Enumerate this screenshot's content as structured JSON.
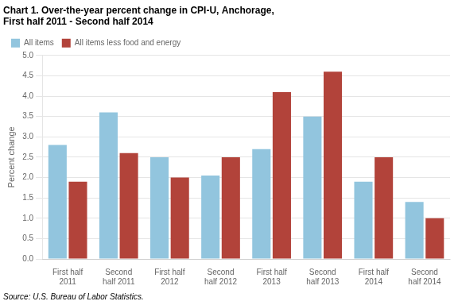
{
  "chart_data": {
    "type": "bar",
    "title": "Chart 1. Over-the-year percent change in CPI-U, Anchorage,\nFirst half 2011 - Second half 2014",
    "ylabel": "Percent change",
    "annotations": [
      "Source: U.S. Bureau of Labor Statistics."
    ],
    "categories": [
      "First half\n2011",
      "Second\nhalf 2011",
      "First half\n2012",
      "Second\nhalf 2012",
      "First half\n2013",
      "Second\nhalf 2013",
      "First half\n2014",
      "Second\nhalf 2014"
    ],
    "series": [
      {
        "name": "All items",
        "color": "#92C5DE",
        "values": [
          2.8,
          3.6,
          2.5,
          2.05,
          2.7,
          3.5,
          1.9,
          1.4
        ]
      },
      {
        "name": "All items less food and energy",
        "color": "#B2433A",
        "values": [
          1.9,
          2.6,
          2.0,
          2.5,
          4.1,
          4.6,
          2.5,
          1.0
        ]
      }
    ],
    "ylim": [
      0,
      5.0
    ],
    "yticks": [
      {
        "value": 0,
        "label": "0.0"
      },
      0.5,
      {
        "value": 1,
        "label": "1.0"
      },
      1.5,
      {
        "value": 2,
        "label": "2.0"
      },
      2.5,
      {
        "value": 3,
        "label": "3.0"
      },
      3.5,
      {
        "value": 4,
        "label": "4.0"
      },
      4.5,
      {
        "value": 5,
        "label": "5.0"
      }
    ],
    "grid": true,
    "legend": "upper left"
  }
}
